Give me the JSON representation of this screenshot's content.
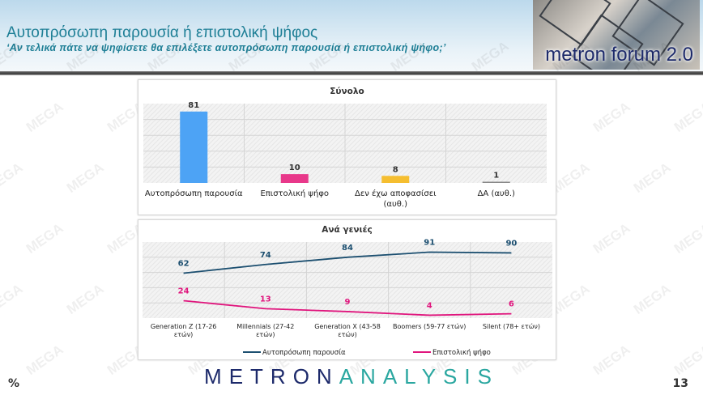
{
  "header": {
    "title": "Αυτοπρόσωπη παρουσία ή επιστολική ψήφος",
    "subtitle": "‘Αν τελικά πάτε να ψηφίσετε θα επιλέξετε αυτοπρόσωπη παρουσία ή επιστολική ψήφο;’",
    "logo_text": "metron forum 2.0"
  },
  "watermark": "MEGA",
  "footer": {
    "brand_a": "METRON",
    "brand_b": "ANALYSIS",
    "unit": "%",
    "page": "13"
  },
  "chart_data": [
    {
      "type": "bar",
      "title": "Σύνολο",
      "categories": [
        "Αυτοπρόσωπη παρουσία",
        "Επιστολική ψήφο",
        "Δεν έχω αποφασίσει (αυθ.)",
        "ΔΑ (αυθ.)"
      ],
      "values": [
        81,
        10,
        8,
        1
      ],
      "colors": [
        "#4da3f5",
        "#e8388a",
        "#f5be30",
        "#888888"
      ],
      "ylim": [
        0,
        90
      ],
      "grid": true
    },
    {
      "type": "line",
      "title": "Ανά γενιές",
      "categories": [
        "Generation Z (17-26 ετών)",
        "Millennials (27-42 ετών)",
        "Generation X (43-58 ετών)",
        "Boomers (59-77 ετών)",
        "Silent (78+ ετών)"
      ],
      "series": [
        {
          "name": "Αυτοπρόσωπη παρουσία",
          "values": [
            62,
            74,
            84,
            91,
            90
          ],
          "color": "#1c4f70"
        },
        {
          "name": "Επιστολική ψήφο",
          "values": [
            24,
            13,
            9,
            4,
            6
          ],
          "color": "#e0157d"
        }
      ],
      "ylim": [
        0,
        105
      ],
      "grid": true,
      "legend": "bottom"
    }
  ]
}
